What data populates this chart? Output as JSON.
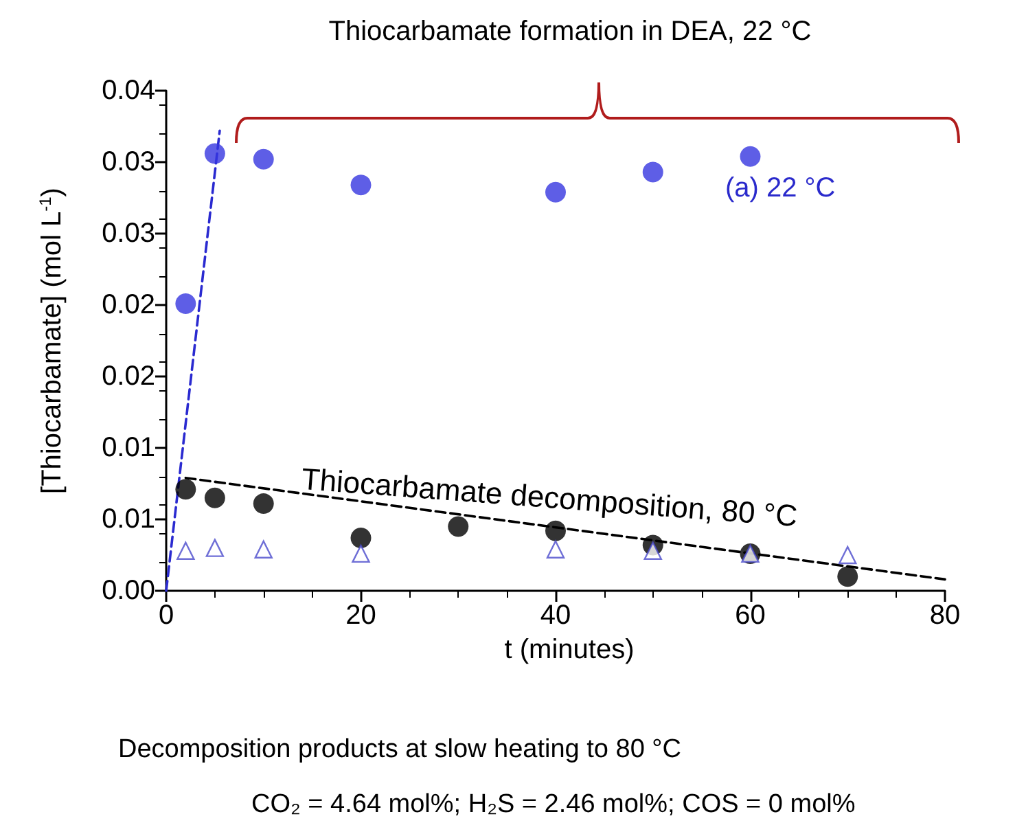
{
  "chart_data": {
    "type": "scatter",
    "title": "Thiocarbamate formation in DEA, 22 °C",
    "xlabel": "t (minutes)",
    "ylabel": "[Thiocarbamate] (mol L$^{-1}$)",
    "xlim": [
      0,
      80
    ],
    "xticks": [
      0,
      20,
      40,
      60,
      80
    ],
    "ylim": [
      0,
      0.035
    ],
    "yticks": [
      {
        "value": 0,
        "label": "0.00"
      },
      {
        "value": 0.005,
        "label": "0.01"
      },
      {
        "value": 0.01,
        "label": "0.01"
      },
      {
        "value": 0.015,
        "label": "0.02"
      },
      {
        "value": 0.02,
        "label": "0.02"
      },
      {
        "value": 0.025,
        "label": "0.03"
      },
      {
        "value": 0.03,
        "label": "0.03"
      },
      {
        "value": 0.035,
        "label": "0.04"
      }
    ],
    "grid": false,
    "series": [
      {
        "marker": "circle",
        "color": "#3636e0",
        "x": [
          2,
          5,
          10,
          20,
          40,
          50,
          60
        ],
        "values": [
          0.0201,
          0.0306,
          0.0302,
          0.0284,
          0.0279,
          0.0293,
          0.0304
        ]
      },
      {
        "marker": "circle",
        "color": "#000000",
        "x": [
          2,
          5,
          10,
          20,
          30,
          40,
          50,
          60,
          70
        ],
        "values": [
          0.0071,
          0.0065,
          0.0061,
          0.0037,
          0.0045,
          0.0042,
          0.0032,
          0.0026,
          0.001
        ]
      },
      {
        "marker": "triangle",
        "color": "#4a4acc",
        "x": [
          2,
          5,
          10,
          20,
          40,
          50,
          60,
          70
        ],
        "values": [
          0.0028,
          0.003,
          0.0029,
          0.0026,
          0.0029,
          0.0028,
          0.0026,
          0.0025
        ]
      },
      {
        "type": "line",
        "marker": "none",
        "line_style": "dashed",
        "color": "#2a2ad0",
        "x": [
          0,
          5.5
        ],
        "values": [
          0,
          0.0322
        ]
      },
      {
        "type": "line",
        "marker": "none",
        "line_style": "dashed",
        "color": "#000000",
        "x": [
          2,
          80
        ],
        "values": [
          0.0079,
          0.0008
        ]
      }
    ],
    "annotations": [
      "(a) 22 °C",
      "Thiocarbamate decomposition, 80 °C",
      "Decomposition products at slow heating to 80 °C",
      "CO₂ = 4.64 mol%; H₂S = 2.46 mol%; COS = 0 mol%"
    ]
  }
}
